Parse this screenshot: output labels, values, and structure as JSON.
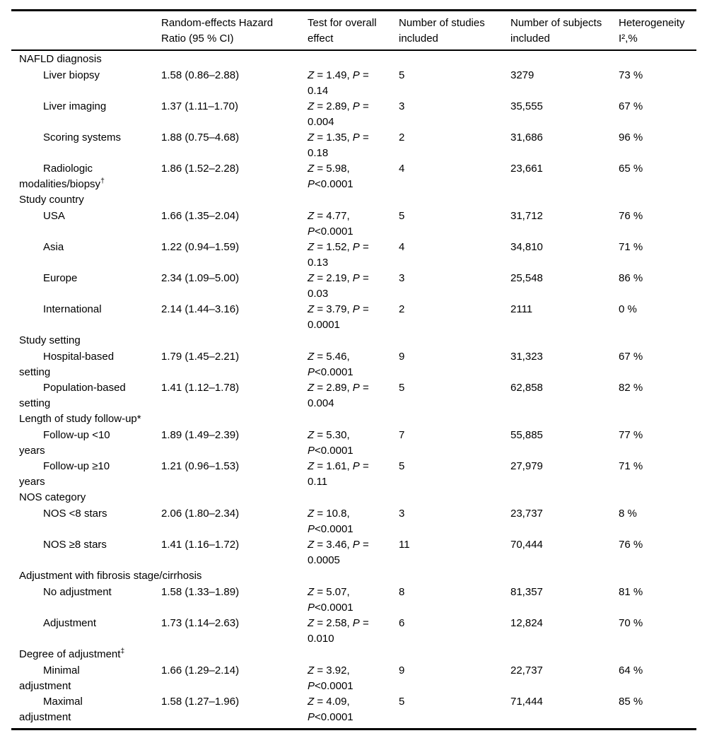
{
  "table": {
    "header": {
      "columns": [
        {
          "id": "label",
          "lines": []
        },
        {
          "id": "hazard_ratio",
          "lines": [
            "Random-effects Hazard",
            "Ratio (95 % CI)"
          ]
        },
        {
          "id": "test",
          "lines": [
            "Test for overall",
            "effect"
          ]
        },
        {
          "id": "studies",
          "lines": [
            "Number of studies",
            "included"
          ]
        },
        {
          "id": "subjects",
          "lines": [
            "Number of subjects",
            "included"
          ]
        },
        {
          "id": "heterogeneity",
          "lines": [
            "Heterogeneity",
            "I²,%"
          ]
        }
      ]
    },
    "rows": [
      {
        "type": "group",
        "label_lines": [
          "NAFLD diagnosis"
        ]
      },
      {
        "type": "item",
        "label_lines": [
          "Liver biopsy"
        ],
        "hazard_ratio": "1.58 (0.86–2.88)",
        "test_lines": [
          "Z = 1.49, P =",
          "0.14"
        ],
        "studies": "5",
        "subjects": "3279",
        "heterogeneity": "73 %"
      },
      {
        "type": "item",
        "label_lines": [
          "Liver imaging"
        ],
        "hazard_ratio": "1.37 (1.11–1.70)",
        "test_lines": [
          "Z = 2.89, P =",
          "0.004"
        ],
        "studies": "3",
        "subjects": "35,555",
        "heterogeneity": "67 %"
      },
      {
        "type": "item",
        "label_lines": [
          "Scoring systems"
        ],
        "hazard_ratio": "1.88 (0.75–4.68)",
        "test_lines": [
          "Z = 1.35, P =",
          "0.18"
        ],
        "studies": "2",
        "subjects": "31,686",
        "heterogeneity": "96 %"
      },
      {
        "type": "item",
        "label_lines": [
          "Radiologic",
          "modalities/biopsy†"
        ],
        "hazard_ratio": "1.86 (1.52–2.28)",
        "test_lines": [
          "Z = 5.98,",
          "P<0.0001"
        ],
        "studies": "4",
        "subjects": "23,661",
        "heterogeneity": "65 %"
      },
      {
        "type": "group",
        "label_lines": [
          "Study country"
        ]
      },
      {
        "type": "item",
        "label_lines": [
          "USA"
        ],
        "hazard_ratio": "1.66 (1.35–2.04)",
        "test_lines": [
          "Z = 4.77,",
          "P<0.0001"
        ],
        "studies": "5",
        "subjects": "31,712",
        "heterogeneity": "76 %"
      },
      {
        "type": "item",
        "label_lines": [
          "Asia"
        ],
        "hazard_ratio": "1.22 (0.94–1.59)",
        "test_lines": [
          "Z = 1.52, P =",
          "0.13"
        ],
        "studies": "4",
        "subjects": "34,810",
        "heterogeneity": "71 %"
      },
      {
        "type": "item",
        "label_lines": [
          "Europe"
        ],
        "hazard_ratio": "2.34 (1.09–5.00)",
        "test_lines": [
          "Z = 2.19, P =",
          "0.03"
        ],
        "studies": "3",
        "subjects": "25,548",
        "heterogeneity": "86 %"
      },
      {
        "type": "item",
        "label_lines": [
          "International"
        ],
        "hazard_ratio": "2.14 (1.44–3.16)",
        "test_lines": [
          "Z = 3.79, P =",
          "0.0001"
        ],
        "studies": "2",
        "subjects": "2111",
        "heterogeneity": "0 %"
      },
      {
        "type": "group",
        "label_lines": [
          "Study setting"
        ]
      },
      {
        "type": "item",
        "label_lines": [
          "Hospital-based",
          "setting"
        ],
        "hazard_ratio": "1.79 (1.45–2.21)",
        "test_lines": [
          "Z = 5.46,",
          "P<0.0001"
        ],
        "studies": "9",
        "subjects": "31,323",
        "heterogeneity": "67 %"
      },
      {
        "type": "item",
        "label_lines": [
          "Population-based",
          "setting"
        ],
        "hazard_ratio": "1.41 (1.12–1.78)",
        "test_lines": [
          "Z = 2.89, P =",
          "0.004"
        ],
        "studies": "5",
        "subjects": "62,858",
        "heterogeneity": "82 %"
      },
      {
        "type": "group",
        "label_lines": [
          "Length of study follow-up*"
        ]
      },
      {
        "type": "item",
        "label_lines": [
          "Follow-up <10",
          "years"
        ],
        "hazard_ratio": "1.89 (1.49–2.39)",
        "test_lines": [
          "Z = 5.30,",
          "P<0.0001"
        ],
        "studies": "7",
        "subjects": "55,885",
        "heterogeneity": "77 %"
      },
      {
        "type": "item",
        "label_lines": [
          "Follow-up ≥10",
          "years"
        ],
        "hazard_ratio": "1.21 (0.96–1.53)",
        "test_lines": [
          "Z = 1.61, P =",
          "0.11"
        ],
        "studies": "5",
        "subjects": "27,979",
        "heterogeneity": "71 %"
      },
      {
        "type": "group",
        "label_lines": [
          "NOS category"
        ]
      },
      {
        "type": "item",
        "label_lines": [
          "NOS <8 stars"
        ],
        "hazard_ratio": "2.06 (1.80–2.34)",
        "test_lines": [
          "Z = 10.8,",
          "P<0.0001"
        ],
        "studies": "3",
        "subjects": "23,737",
        "heterogeneity": "8 %"
      },
      {
        "type": "item",
        "label_lines": [
          "NOS ≥8 stars"
        ],
        "hazard_ratio": "1.41 (1.16–1.72)",
        "test_lines": [
          "Z = 3.46, P =",
          "0.0005"
        ],
        "studies": "11",
        "subjects": "70,444",
        "heterogeneity": "76 %"
      },
      {
        "type": "group",
        "label_lines": [
          "Adjustment with fibrosis stage/cirrhosis"
        ]
      },
      {
        "type": "item",
        "label_lines": [
          "No adjustment"
        ],
        "hazard_ratio": "1.58 (1.33–1.89)",
        "test_lines": [
          "Z = 5.07,",
          "P<0.0001"
        ],
        "studies": "8",
        "subjects": "81,357",
        "heterogeneity": "81 %"
      },
      {
        "type": "item",
        "label_lines": [
          "Adjustment"
        ],
        "hazard_ratio": "1.73 (1.14–2.63)",
        "test_lines": [
          "Z = 2.58, P =",
          "0.010"
        ],
        "studies": "6",
        "subjects": "12,824",
        "heterogeneity": "70 %"
      },
      {
        "type": "group",
        "label_lines": [
          "Degree of adjustment‡"
        ]
      },
      {
        "type": "item",
        "label_lines": [
          "Minimal",
          "adjustment"
        ],
        "hazard_ratio": "1.66 (1.29–2.14)",
        "test_lines": [
          "Z = 3.92,",
          "P<0.0001"
        ],
        "studies": "9",
        "subjects": "22,737",
        "heterogeneity": "64 %"
      },
      {
        "type": "item",
        "label_lines": [
          "Maximal",
          "adjustment"
        ],
        "hazard_ratio": "1.58 (1.27–1.96)",
        "test_lines": [
          "Z = 4.09,",
          "P<0.0001"
        ],
        "studies": "5",
        "subjects": "71,444",
        "heterogeneity": "85 %"
      }
    ]
  },
  "colors": {
    "text": "#000000",
    "rule": "#000000",
    "background": "#ffffff"
  }
}
